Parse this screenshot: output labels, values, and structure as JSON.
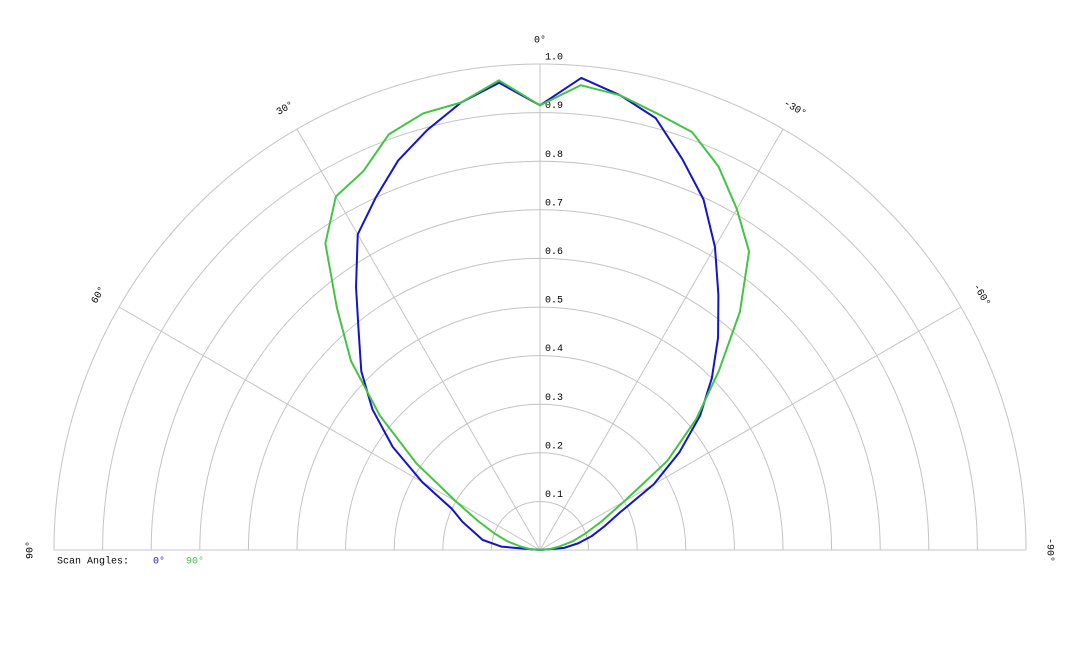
{
  "chart_data": {
    "type": "polar",
    "angles": [
      90,
      85,
      80,
      75,
      70,
      65,
      60,
      55,
      50,
      45,
      40,
      35,
      30,
      25,
      20,
      15,
      10,
      5,
      0,
      -5,
      -10,
      -15,
      -20,
      -25,
      -30,
      -35,
      -40,
      -45,
      -50,
      -55,
      -60,
      -65,
      -70,
      -75,
      -80,
      -85,
      -90
    ],
    "series": [
      {
        "name": "0°",
        "color": "#1414c8",
        "values": [
          0,
          0.08,
          0.12,
          0.14,
          0.17,
          0.2,
          0.28,
          0.37,
          0.45,
          0.52,
          0.58,
          0.66,
          0.75,
          0.8,
          0.853,
          0.895,
          0.935,
          0.965,
          0.915,
          0.975,
          0.95,
          0.92,
          0.856,
          0.796,
          0.72,
          0.64,
          0.57,
          0.5,
          0.43,
          0.35,
          0.27,
          0.18,
          0.14,
          0.11,
          0.08,
          0.05,
          0
        ]
      },
      {
        "name": "90°",
        "color": "#44c444",
        "values": [
          0,
          0.02,
          0.04,
          0.07,
          0.1,
          0.14,
          0.2,
          0.31,
          0.43,
          0.55,
          0.65,
          0.77,
          0.84,
          0.86,
          0.91,
          0.93,
          0.935,
          0.97,
          0.915,
          0.96,
          0.95,
          0.93,
          0.915,
          0.87,
          0.81,
          0.75,
          0.64,
          0.52,
          0.42,
          0.32,
          0.2,
          0.14,
          0.1,
          0.07,
          0.04,
          0.02,
          0
        ]
      }
    ],
    "rlim": [
      0,
      1
    ],
    "rticks": [
      0.1,
      0.2,
      0.3,
      0.4,
      0.5,
      0.6,
      0.7,
      0.8,
      0.9,
      {
        "value": 1,
        "label": "1.0"
      }
    ],
    "angle_ticks": [
      {
        "value": 90,
        "label": "90°"
      },
      {
        "value": 60,
        "label": "60°"
      },
      {
        "value": 30,
        "label": "30°"
      },
      {
        "value": 0,
        "label": "0°"
      },
      {
        "value": -30,
        "label": "-30°"
      },
      {
        "value": -60,
        "label": "-60°"
      },
      {
        "value": -90,
        "label": "-90°"
      }
    ],
    "legend_title": "Scan Angles:"
  }
}
